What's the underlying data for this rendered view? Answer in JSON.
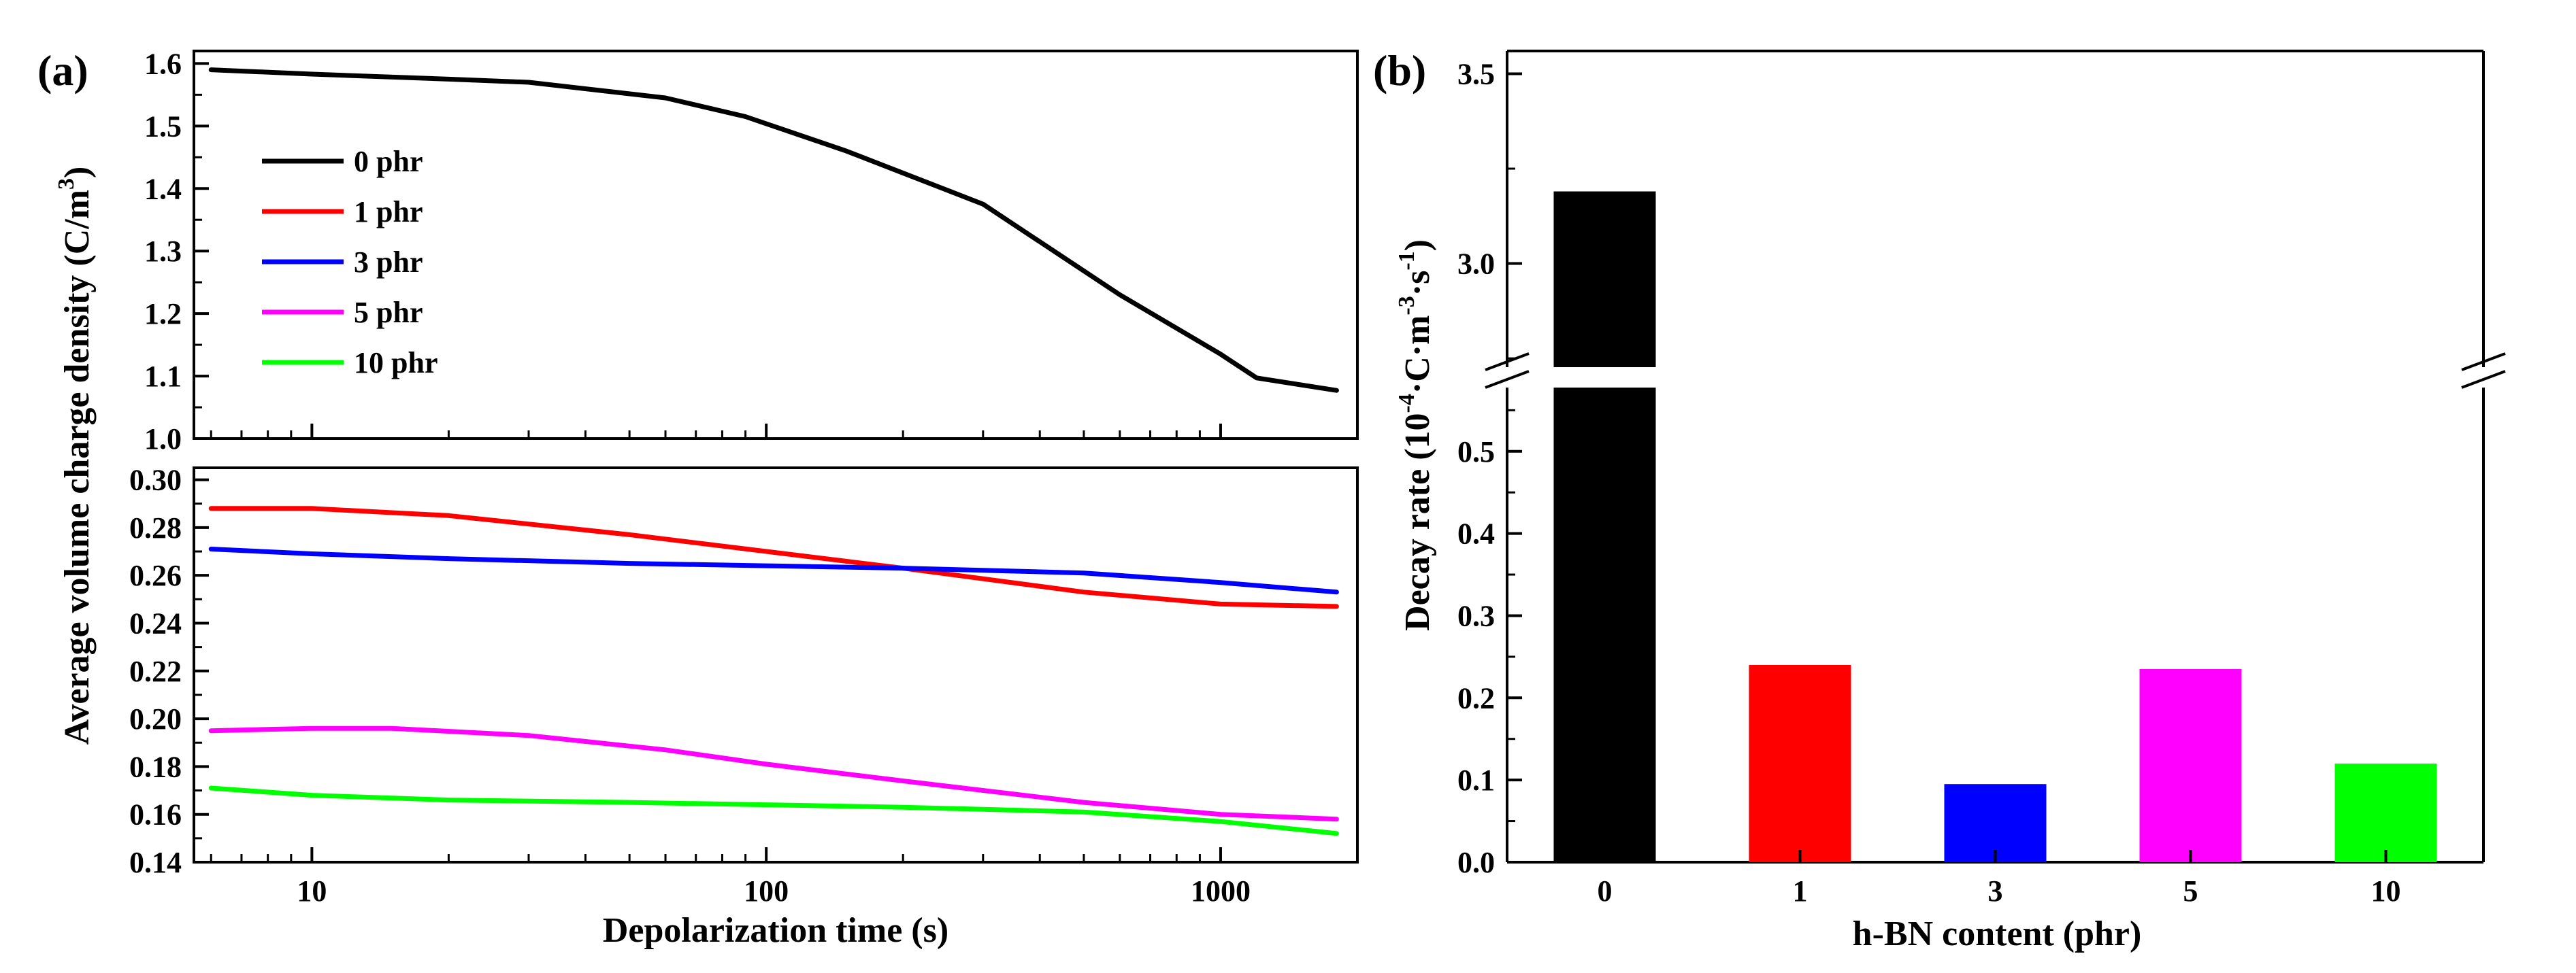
{
  "chart_data": [
    {
      "panel": "(a)",
      "type": "line",
      "xscale": "log",
      "xlabel": "Depolarization time (s)",
      "ylabel": "Average volume charge density (C/m",
      "ylabel_sup": "3",
      "ylabel_end": ")",
      "xlim": [
        5.5,
        2000
      ],
      "x_ticks": [
        10,
        100,
        1000
      ],
      "x_tick_labels": [
        "10",
        "100",
        "1000"
      ],
      "upper": {
        "ylim": [
          1.0,
          1.62
        ],
        "y_ticks": [
          1.0,
          1.1,
          1.2,
          1.3,
          1.4,
          1.5,
          1.6
        ],
        "y_tick_labels": [
          "1.0",
          "1.1",
          "1.2",
          "1.3",
          "1.4",
          "1.5",
          "1.6"
        ]
      },
      "lower": {
        "ylim": [
          0.14,
          0.305
        ],
        "y_ticks": [
          0.14,
          0.16,
          0.18,
          0.2,
          0.22,
          0.24,
          0.26,
          0.28,
          0.3
        ],
        "y_tick_labels": [
          "0.14",
          "0.16",
          "0.18",
          "0.20",
          "0.22",
          "0.24",
          "0.26",
          "0.28",
          "0.30"
        ]
      },
      "legend": {
        "placement": "upper panel, left"
      },
      "series": [
        {
          "name": "0 phr",
          "color": "#000000",
          "panel": "upper",
          "x": [
            6,
            10,
            20,
            30,
            60,
            90,
            150,
            300,
            600,
            1000,
            1200,
            1800
          ],
          "y": [
            1.59,
            1.583,
            1.575,
            1.57,
            1.545,
            1.515,
            1.46,
            1.375,
            1.23,
            1.135,
            1.097,
            1.077
          ]
        },
        {
          "name": "1 phr",
          "color": "#ff0000",
          "panel": "lower",
          "x": [
            6,
            10,
            20,
            50,
            100,
            200,
            500,
            1000,
            1800
          ],
          "y": [
            0.288,
            0.288,
            0.285,
            0.277,
            0.27,
            0.263,
            0.253,
            0.248,
            0.247
          ]
        },
        {
          "name": "3 phr",
          "color": "#0000ff",
          "panel": "lower",
          "x": [
            6,
            10,
            20,
            50,
            100,
            200,
            500,
            1000,
            1800
          ],
          "y": [
            0.271,
            0.269,
            0.267,
            0.265,
            0.264,
            0.263,
            0.261,
            0.257,
            0.253
          ]
        },
        {
          "name": "5 phr",
          "color": "#ff00ff",
          "panel": "lower",
          "x": [
            6,
            10,
            15,
            30,
            60,
            100,
            200,
            500,
            1000,
            1800
          ],
          "y": [
            0.195,
            0.196,
            0.196,
            0.193,
            0.187,
            0.181,
            0.174,
            0.165,
            0.16,
            0.158
          ]
        },
        {
          "name": "10 phr",
          "color": "#00ff00",
          "panel": "lower",
          "x": [
            6,
            10,
            20,
            50,
            100,
            200,
            500,
            1000,
            1800
          ],
          "y": [
            0.171,
            0.168,
            0.166,
            0.165,
            0.164,
            0.163,
            0.161,
            0.157,
            0.152
          ]
        }
      ]
    },
    {
      "panel": "(b)",
      "type": "bar",
      "xlabel": "h-BN content (phr)",
      "ylabel": "Decay rate (10",
      "ylabel_sup1": "-4",
      "ylabel_mid": "·C·m",
      "ylabel_sup2": "-3",
      "ylabel_mid2": "·s",
      "ylabel_sup3": "-1",
      "ylabel_end": ")",
      "categories": [
        "0",
        "1",
        "3",
        "5",
        "10"
      ],
      "values": [
        3.19,
        0.24,
        0.095,
        0.235,
        0.12
      ],
      "colors": [
        "#000000",
        "#ff0000",
        "#0000ff",
        "#ff00ff",
        "#00ff00"
      ],
      "axis_break": true,
      "lower_range": [
        0,
        0.59
      ],
      "upper_range": [
        2.7,
        3.56
      ],
      "y_ticks_lower": [
        0.0,
        0.1,
        0.2,
        0.3,
        0.4,
        0.5
      ],
      "y_tick_labels_lower": [
        "0.0",
        "0.1",
        "0.2",
        "0.3",
        "0.4",
        "0.5"
      ],
      "y_ticks_upper": [
        3.0,
        3.5
      ],
      "y_tick_labels_upper": [
        "3.0",
        "3.5"
      ]
    }
  ]
}
